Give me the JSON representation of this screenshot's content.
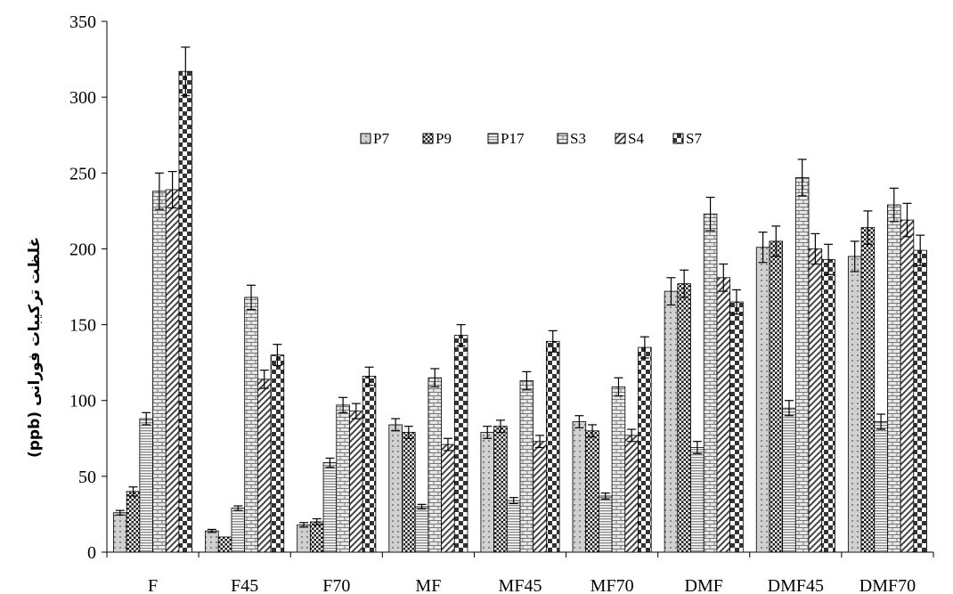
{
  "chart_data": {
    "type": "bar",
    "categories": [
      "F",
      "F45",
      "F70",
      "MF",
      "MF45",
      "MF70",
      "DMF",
      "DMF45",
      "DMF70"
    ],
    "series": [
      {
        "name": "P7",
        "pattern": "dots",
        "values": [
          26,
          14,
          18,
          84,
          79,
          86,
          172,
          201,
          195
        ],
        "errors": [
          1.5,
          1,
          1.5,
          4,
          4,
          4,
          9,
          10,
          10
        ]
      },
      {
        "name": "P9",
        "pattern": "checker",
        "values": [
          40,
          10,
          20,
          79,
          83,
          80,
          177,
          205,
          214
        ],
        "errors": [
          3,
          0,
          2,
          4,
          4,
          4,
          9,
          10,
          11
        ]
      },
      {
        "name": "P17",
        "pattern": "hlines",
        "values": [
          88,
          29,
          59,
          30,
          34,
          37,
          69,
          95,
          86
        ],
        "errors": [
          4,
          1.5,
          3,
          1.5,
          2,
          2,
          4,
          5,
          5
        ]
      },
      {
        "name": "S3",
        "pattern": "bricks",
        "values": [
          238,
          168,
          97,
          115,
          113,
          109,
          223,
          247,
          229
        ],
        "errors": [
          12,
          8,
          5,
          6,
          6,
          6,
          11,
          12,
          11
        ]
      },
      {
        "name": "S4",
        "pattern": "diag",
        "values": [
          239,
          114,
          93,
          71,
          73,
          77,
          181,
          200,
          219
        ],
        "errors": [
          12,
          6,
          5,
          4,
          4,
          4,
          9,
          10,
          11
        ]
      },
      {
        "name": "S7",
        "pattern": "bigchecker",
        "values": [
          317,
          130,
          116,
          143,
          139,
          135,
          165,
          193,
          199
        ],
        "errors": [
          16,
          7,
          6,
          7,
          7,
          7,
          8,
          10,
          10
        ]
      }
    ],
    "ylim": [
      0,
      350
    ],
    "yticks": [
      0,
      50,
      100,
      150,
      200,
      250,
      300,
      350
    ],
    "ylabel": "غلظت ترکیبات فورانی (ppb)",
    "xlabel": "",
    "title": "",
    "legend_position": "top-center",
    "grid": false
  }
}
